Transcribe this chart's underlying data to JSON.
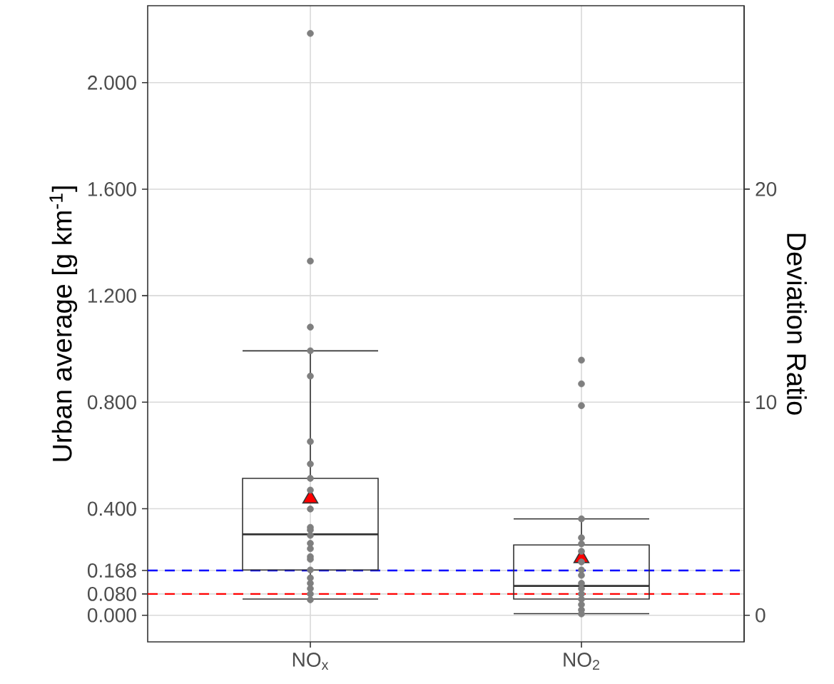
{
  "chart_data": {
    "type": "box",
    "categories": [
      "NO$_{x}$",
      "NO$_{2}$"
    ],
    "ylabel": "Urban average [g km$^{-1}$]",
    "y2label": "Deviation Ratio",
    "ylim": [
      -0.1,
      2.289
    ],
    "yticks": [
      {
        "value": 0,
        "label": "0.000"
      },
      {
        "value": 0.08,
        "label": "0.080"
      },
      {
        "value": 0.168,
        "label": "0.168"
      },
      {
        "value": 0.4,
        "label": "0.400"
      },
      {
        "value": 0.8,
        "label": "0.800"
      },
      {
        "value": 1.2,
        "label": "1.200"
      },
      {
        "value": 1.6,
        "label": "1.600"
      },
      {
        "value": 2.0,
        "label": "2.000"
      }
    ],
    "y2lim": [
      -1.25,
      28.61
    ],
    "y2ticks": [
      0,
      10,
      20
    ],
    "grid": true,
    "boxes": [
      {
        "low": 0.061,
        "q1": 0.17,
        "median": 0.304,
        "q3": 0.514,
        "high": 0.993,
        "mean": 0.438
      },
      {
        "low": 0.006,
        "q1": 0.061,
        "median": 0.11,
        "q3": 0.264,
        "high": 0.362,
        "mean": 0.214
      }
    ],
    "series": [
      {
        "type": "scatter",
        "color": "#7f7f7f",
        "marker": "circle",
        "x": [
          "NO$_{x}$",
          "NO$_{x}$",
          "NO$_{x}$",
          "NO$_{x}$",
          "NO$_{x}$",
          "NO$_{x}$",
          "NO$_{x}$",
          "NO$_{x}$",
          "NO$_{x}$",
          "NO$_{x}$",
          "NO$_{x}$",
          "NO$_{x}$",
          "NO$_{x}$",
          "NO$_{x}$",
          "NO$_{x}$",
          "NO$_{x}$",
          "NO$_{x}$",
          "NO$_{x}$",
          "NO$_{x}$",
          "NO$_{x}$",
          "NO$_{x}$",
          "NO$_{x}$",
          "NO$_{x}$",
          "NO$_{2}$",
          "NO$_{2}$",
          "NO$_{2}$",
          "NO$_{2}$",
          "NO$_{2}$",
          "NO$_{2}$",
          "NO$_{2}$",
          "NO$_{2}$",
          "NO$_{2}$",
          "NO$_{2}$",
          "NO$_{2}$",
          "NO$_{2}$",
          "NO$_{2}$",
          "NO$_{2}$",
          "NO$_{2}$",
          "NO$_{2}$",
          "NO$_{2}$"
        ],
        "values": [
          2.185,
          1.33,
          1.082,
          0.993,
          0.898,
          0.652,
          0.568,
          0.514,
          0.47,
          0.399,
          0.33,
          0.32,
          0.3,
          0.27,
          0.25,
          0.22,
          0.21,
          0.17,
          0.14,
          0.12,
          0.1,
          0.08,
          0.058,
          0.958,
          0.869,
          0.787,
          0.362,
          0.291,
          0.268,
          0.24,
          0.2,
          0.17,
          0.15,
          0.12,
          0.1,
          0.08,
          0.06,
          0.04,
          0.02,
          0.005
        ]
      }
    ],
    "ref_lines": [
      {
        "axis": "y",
        "value": 0.168,
        "color": "#0000ff",
        "line_style": "dashed"
      },
      {
        "axis": "y",
        "value": 0.08,
        "color": "#ff0000",
        "line_style": "dashed"
      }
    ]
  }
}
